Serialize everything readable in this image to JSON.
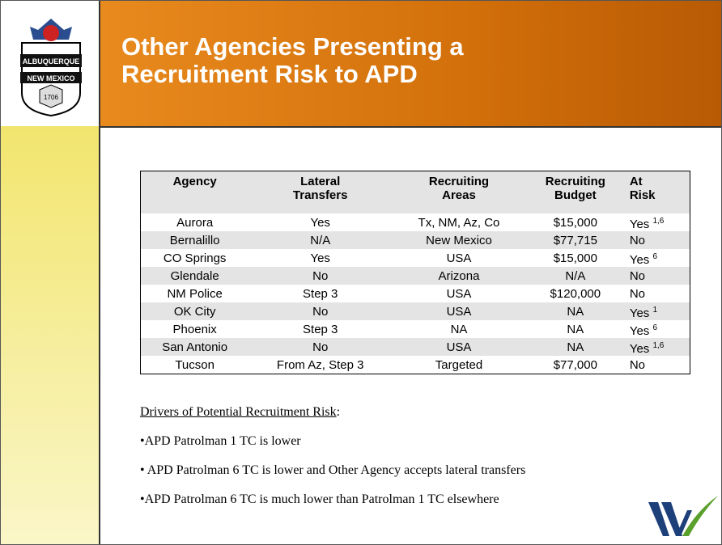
{
  "header": {
    "title": "Other Agencies Presenting a Recruitment Risk to APD"
  },
  "logo": {
    "city": "ALBUQUERQUE",
    "state": "NEW MEXICO",
    "year": "1706"
  },
  "table": {
    "columns": [
      [
        "Agency"
      ],
      [
        "Lateral",
        "Transfers"
      ],
      [
        "Recruiting",
        "Areas"
      ],
      [
        "Recruiting",
        "Budget"
      ],
      [
        "At",
        "Risk"
      ]
    ],
    "rows": [
      {
        "agency": "Aurora",
        "lateral": "Yes",
        "areas": "Tx, NM, Az, Co",
        "budget": "$15,000",
        "risk": "Yes",
        "note": "1,6"
      },
      {
        "agency": "Bernalillo",
        "lateral": "N/A",
        "areas": "New Mexico",
        "budget": "$77,715",
        "risk": "No"
      },
      {
        "agency": "CO Springs",
        "lateral": "Yes",
        "areas": "USA",
        "budget": "$15,000",
        "risk": "Yes",
        "note": "6"
      },
      {
        "agency": "Glendale",
        "lateral": "No",
        "areas": "Arizona",
        "budget": "N/A",
        "risk": "No"
      },
      {
        "agency": "NM Police",
        "lateral": "Step 3",
        "areas": "USA",
        "budget": "$120,000",
        "risk": "No"
      },
      {
        "agency": "OK City",
        "lateral": "No",
        "areas": "USA",
        "budget": "NA",
        "risk": "Yes",
        "note": "1"
      },
      {
        "agency": "Phoenix",
        "lateral": "Step 3",
        "areas": "NA",
        "budget": "NA",
        "risk": "Yes",
        "note": "6"
      },
      {
        "agency": "San Antonio",
        "lateral": "No",
        "areas": "USA",
        "budget": "NA",
        "risk": "Yes",
        "note": "1,6"
      },
      {
        "agency": "Tucson",
        "lateral": "From Az, Step 3",
        "areas": "Targeted",
        "budget": "$77,000",
        "risk": "No"
      }
    ]
  },
  "drivers": {
    "heading": "Drivers of Potential Recruitment Risk",
    "bullets": [
      "•APD Patrolman 1 TC is lower",
      "• APD Patrolman 6 TC is lower and Other Agency accepts lateral transfers",
      "•APD Patrolman 6 TC is much lower than Patrolman 1 TC elsewhere"
    ]
  }
}
